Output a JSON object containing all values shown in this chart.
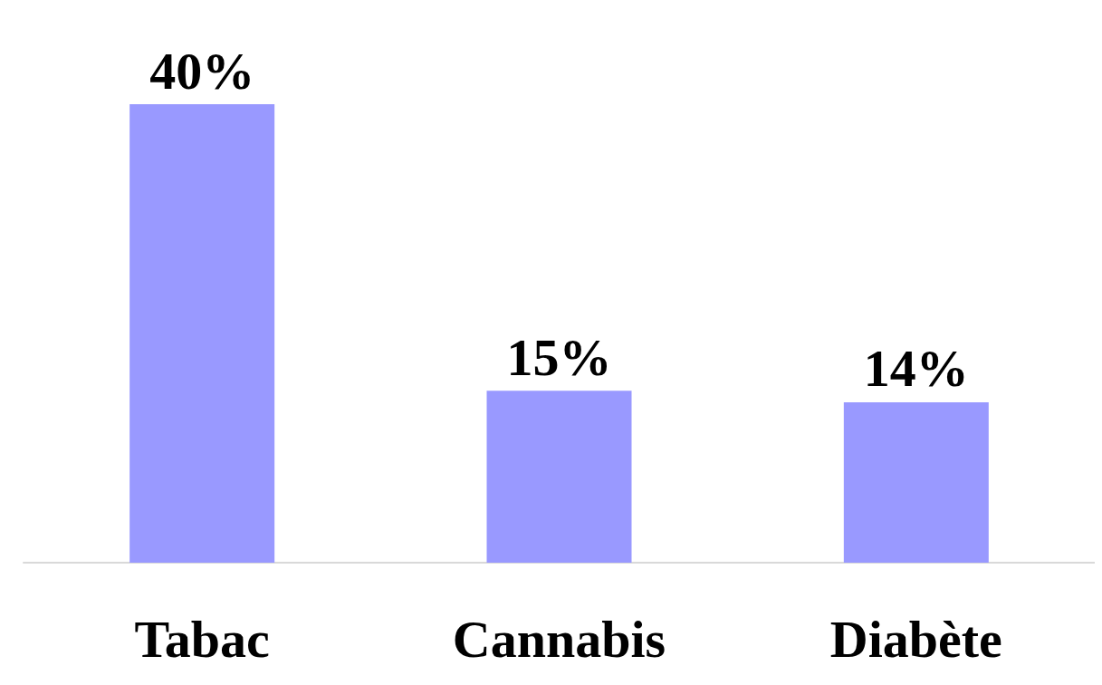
{
  "chart_data": {
    "type": "bar",
    "categories": [
      "Tabac",
      "Cannabis",
      "Diabète"
    ],
    "values": [
      40,
      15,
      14
    ],
    "color": "#9999ff",
    "value_labels": [
      "40%",
      "15%",
      "14%"
    ],
    "grid": false
  }
}
